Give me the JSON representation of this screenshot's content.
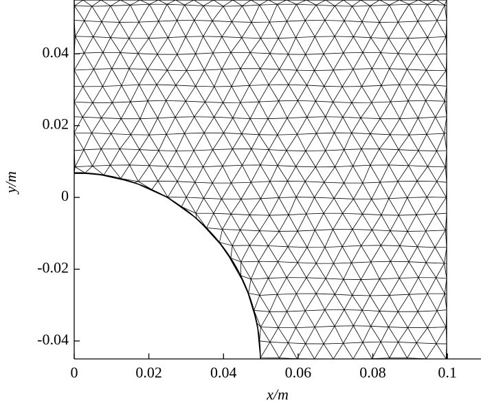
{
  "chart_data": {
    "type": "mesh",
    "xlabel": "x/m",
    "ylabel": "y/m",
    "xlim": [
      0,
      0.109
    ],
    "ylim": [
      -0.045,
      0.055
    ],
    "xticks": [
      0,
      0.02,
      0.04,
      0.06,
      0.08,
      0.1
    ],
    "yticks": [
      -0.04,
      -0.02,
      0,
      0.02,
      0.04
    ],
    "color": "#000000"
  }
}
